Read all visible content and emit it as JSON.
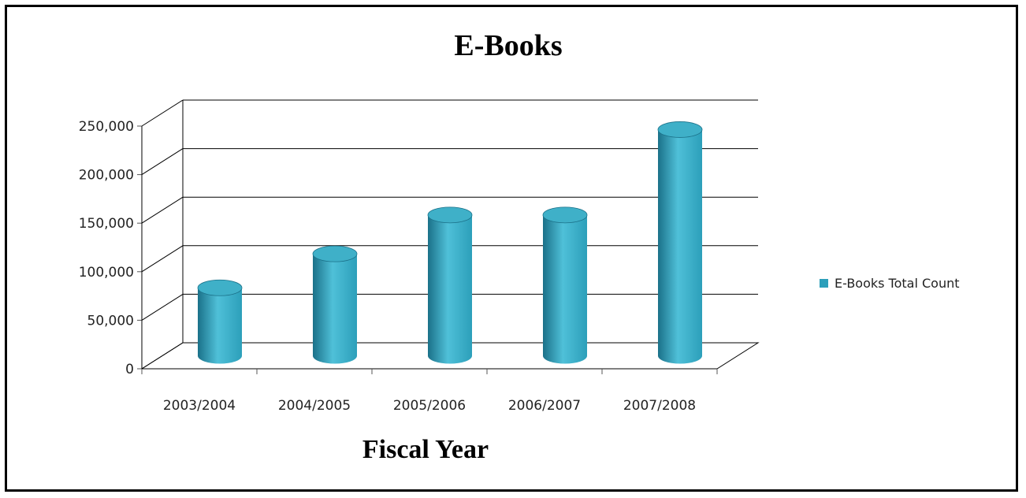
{
  "chart_data": {
    "type": "bar",
    "title": "E-Books",
    "xlabel": "Fiscal Year",
    "ylabel": "",
    "categories": [
      "2003/2004",
      "2004/2005",
      "2005/2006",
      "2006/2007",
      "2007/2008"
    ],
    "series": [
      {
        "name": "E-Books Total  Count",
        "values": [
          70000,
          105000,
          145000,
          145000,
          233000
        ]
      }
    ],
    "ylim": [
      0,
      250000
    ],
    "yticks": [
      "0",
      "50,000",
      "100,000",
      "150,000",
      "200,000",
      "250,000"
    ],
    "grid": true,
    "legend_position": "right",
    "bar_style": "3d-cylinder",
    "colors": {
      "bar": "#2c9fba",
      "bar_light": "#4fc0d8",
      "bar_dark": "#1b7189",
      "bar_top": "#3fb0c8",
      "grid": "#000000"
    }
  }
}
